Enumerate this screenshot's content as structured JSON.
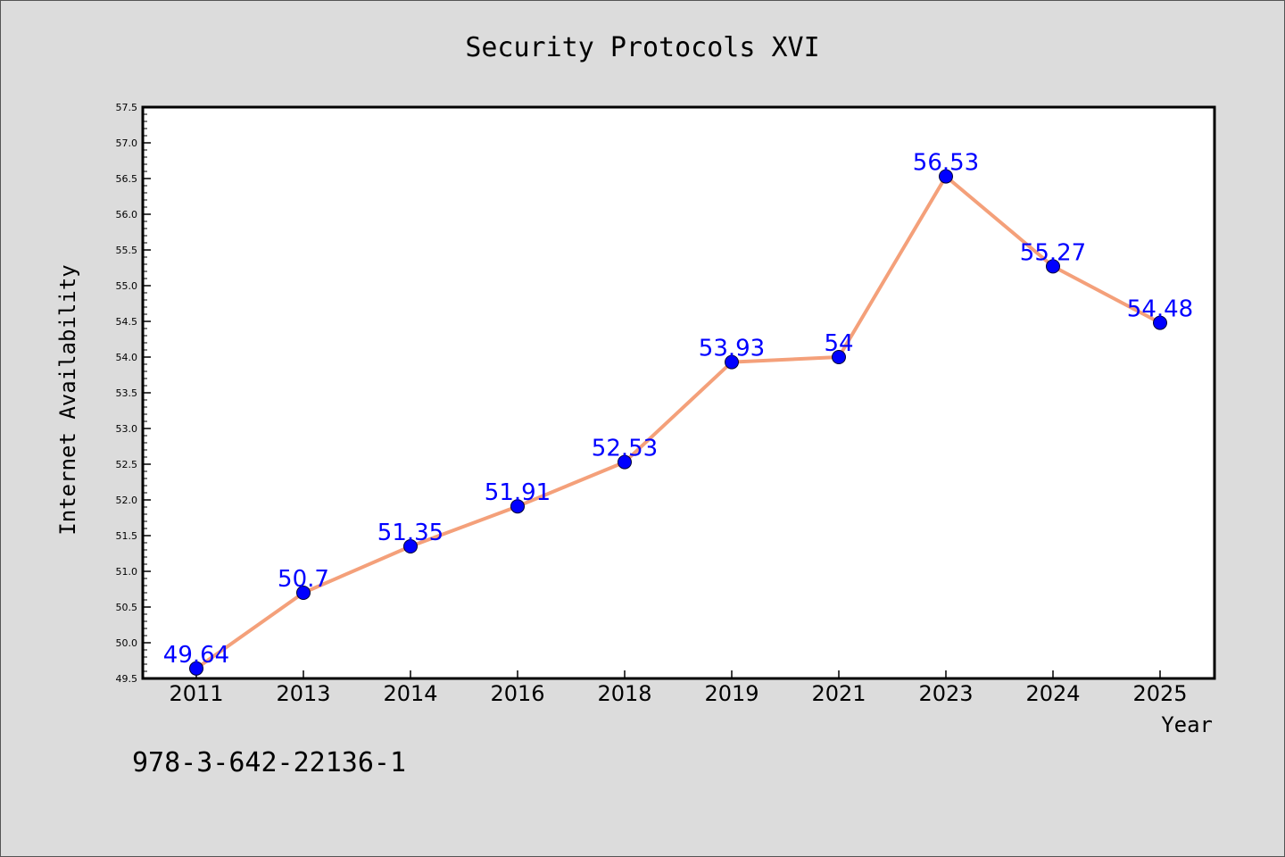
{
  "footer_text": "978-3-642-22136-1",
  "chart_data": {
    "type": "line",
    "title": "Security Protocols XVI",
    "xlabel": "Year",
    "ylabel": "Internet Availability",
    "categories": [
      "2011",
      "2013",
      "2014",
      "2016",
      "2018",
      "2019",
      "2021",
      "2023",
      "2024",
      "2025"
    ],
    "series": [
      {
        "values": [
          49.64,
          50.7,
          51.35,
          51.91,
          52.53,
          53.93,
          54,
          56.53,
          55.27,
          54.48
        ],
        "data_labels": [
          "49.64",
          "50.7",
          "51.35",
          "51.91",
          "52.53",
          "53.93",
          "54",
          "56.53",
          "55.27",
          "54.48"
        ],
        "line_color": "#f4a07a",
        "marker_color": "#0000ff",
        "label_color": "#0000ff"
      }
    ],
    "ylim": [
      49.5,
      57.5
    ],
    "ytick_labels": [
      "49.5",
      "50.0",
      "50.5",
      "51.0",
      "51.5",
      "52.0",
      "52.5",
      "53.0",
      "53.5",
      "54.0",
      "54.5",
      "55.0",
      "55.5",
      "56.0",
      "56.5",
      "57.0",
      "57.5"
    ],
    "grid": false,
    "legend": "none",
    "plot_background": "#ffffff",
    "figure_background": "#dcdcdc"
  }
}
